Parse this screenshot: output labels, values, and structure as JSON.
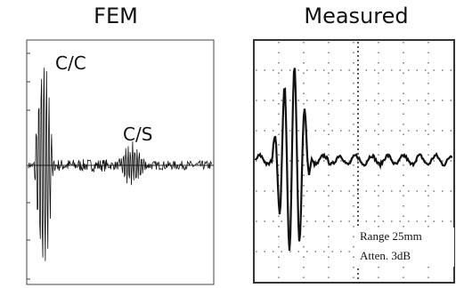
{
  "panels": [
    {
      "title": "FEM",
      "annotations": [
        "C/C",
        "C/S"
      ]
    },
    {
      "title": "Measured",
      "annotations": [
        "Range 25mm",
        "Atten. 3dB"
      ]
    }
  ]
}
